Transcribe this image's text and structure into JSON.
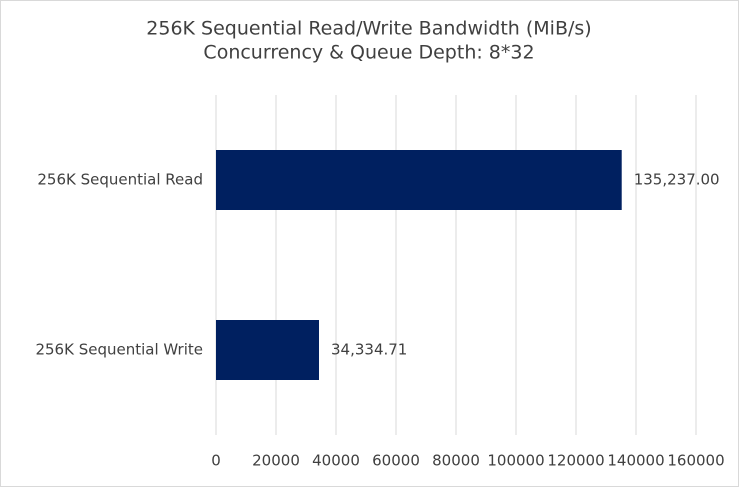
{
  "chart_data": {
    "type": "bar",
    "orientation": "horizontal",
    "title": "256K Sequential Read/Write Bandwidth (MiB/s)",
    "subtitle": "Concurrency & Queue Depth: 8*32",
    "categories": [
      "256K Sequential Read",
      "256K Sequential Write"
    ],
    "values": [
      135237.0,
      34334.71
    ],
    "value_labels": [
      "135,237.00",
      "34,334.71"
    ],
    "color": "#002060",
    "xlim": [
      0,
      160000
    ],
    "xticks": [
      0,
      20000,
      40000,
      60000,
      80000,
      100000,
      120000,
      140000,
      160000
    ],
    "grid": true
  }
}
